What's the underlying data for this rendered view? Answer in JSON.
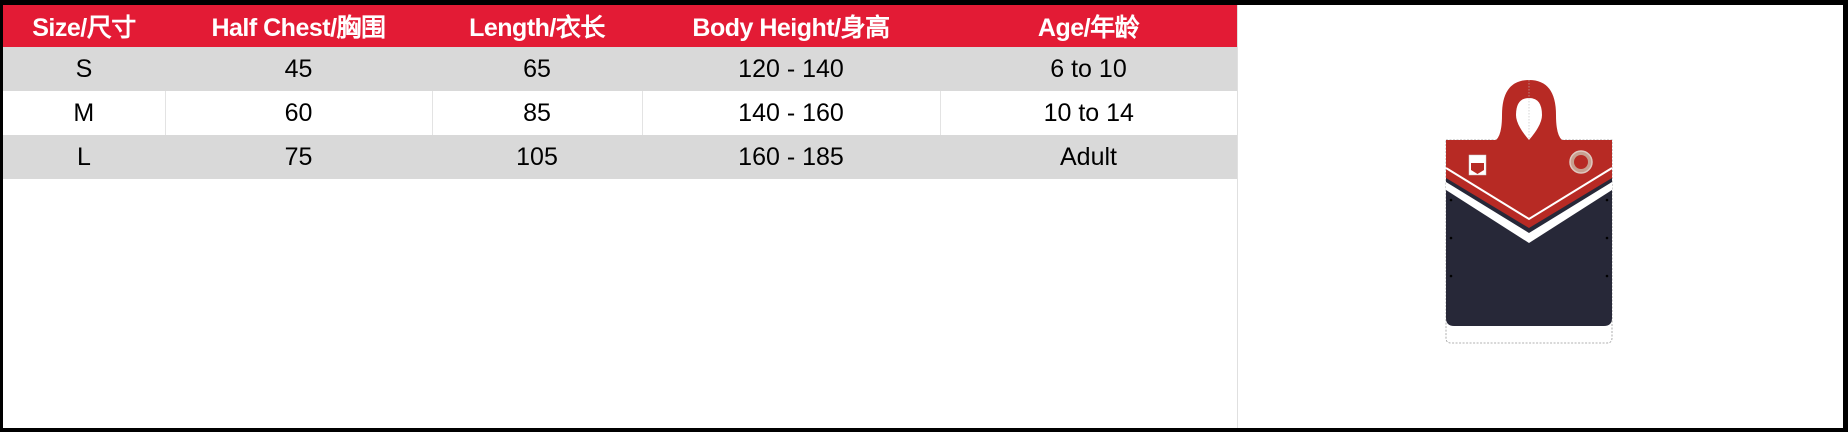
{
  "table": {
    "headers": [
      "Size/尺寸",
      "Half Chest/胸围",
      "Length/衣长",
      "Body Height/身高",
      "Age/年龄"
    ],
    "rows": [
      [
        "S",
        "45",
        "65",
        "120 - 140",
        "6 to 10"
      ],
      [
        "M",
        "60",
        "85",
        "140 - 160",
        "10 to 14"
      ],
      [
        "L",
        "75",
        "105",
        "160 - 185",
        "Adult"
      ]
    ]
  },
  "colors": {
    "header_bg": "#e31b35",
    "row_alt_bg": "#d9d9d9",
    "poncho_red": "#b72a24",
    "poncho_navy": "#272838"
  },
  "product_image": {
    "icon": "hooded-poncho-towel-image"
  }
}
